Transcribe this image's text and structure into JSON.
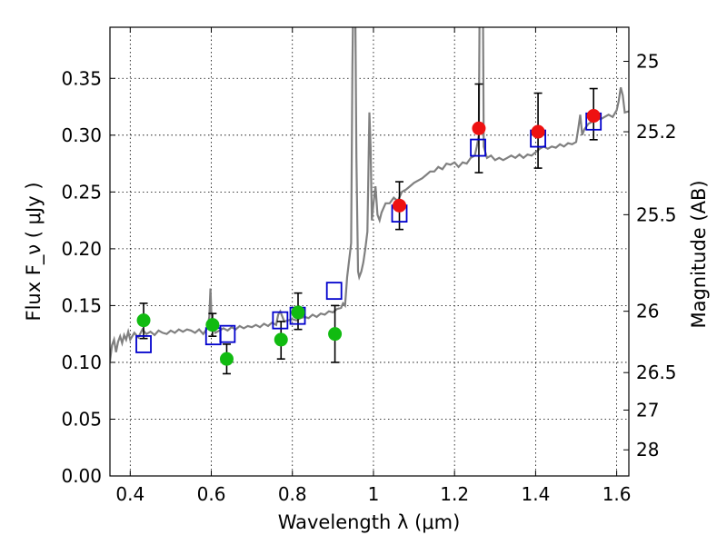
{
  "chart_data": {
    "type": "scatter",
    "title": "",
    "xlabel": "Wavelength  λ (μm)",
    "ylabel": "Flux  F_ν  ( μJy )",
    "y2label": "Magnitude (AB)",
    "xlim": [
      0.35,
      1.63
    ],
    "ylim": [
      0.0,
      0.395
    ],
    "grid": true,
    "x_ticks": [
      0.4,
      0.6,
      0.8,
      1.0,
      1.2,
      1.4,
      1.6
    ],
    "x_tick_labels": [
      "0.4",
      "0.6",
      "0.8",
      "1",
      "1.2",
      "1.4",
      "1.6"
    ],
    "y_ticks": [
      0.0,
      0.05,
      0.1,
      0.15,
      0.2,
      0.25,
      0.3,
      0.35
    ],
    "y_tick_labels": [
      "0.00",
      "0.05",
      "0.10",
      "0.15",
      "0.20",
      "0.25",
      "0.30",
      "0.35"
    ],
    "y2_ticks": [
      {
        "label": "25",
        "flux": 0.365
      },
      {
        "label": "25.2",
        "flux": 0.303
      },
      {
        "label": "25.5",
        "flux": 0.23
      },
      {
        "label": "26",
        "flux": 0.145
      },
      {
        "label": "26.5",
        "flux": 0.091
      },
      {
        "label": "27",
        "flux": 0.058
      },
      {
        "label": "28",
        "flux": 0.023
      }
    ],
    "colors": {
      "model_spectrum": "#808080",
      "green_points": "#11bb11",
      "red_points": "#ee1111",
      "model_squares": "#0000cc",
      "error_bars": "#000000"
    },
    "series": [
      {
        "kind": "line",
        "points": [
          [
            0.35,
            0.101
          ],
          [
            0.355,
            0.115
          ],
          [
            0.36,
            0.12
          ],
          [
            0.365,
            0.109
          ],
          [
            0.37,
            0.118
          ],
          [
            0.375,
            0.123
          ],
          [
            0.38,
            0.117
          ],
          [
            0.385,
            0.124
          ],
          [
            0.39,
            0.12
          ],
          [
            0.395,
            0.127
          ],
          [
            0.4,
            0.12
          ],
          [
            0.41,
            0.126
          ],
          [
            0.42,
            0.122
          ],
          [
            0.43,
            0.129
          ],
          [
            0.44,
            0.125
          ],
          [
            0.45,
            0.127
          ],
          [
            0.46,
            0.124
          ],
          [
            0.47,
            0.128
          ],
          [
            0.48,
            0.126
          ],
          [
            0.49,
            0.125
          ],
          [
            0.5,
            0.128
          ],
          [
            0.51,
            0.126
          ],
          [
            0.52,
            0.129
          ],
          [
            0.53,
            0.127
          ],
          [
            0.54,
            0.129
          ],
          [
            0.55,
            0.128
          ],
          [
            0.56,
            0.126
          ],
          [
            0.57,
            0.129
          ],
          [
            0.58,
            0.125
          ],
          [
            0.59,
            0.13
          ],
          [
            0.595,
            0.14
          ],
          [
            0.598,
            0.165
          ],
          [
            0.6,
            0.145
          ],
          [
            0.605,
            0.131
          ],
          [
            0.61,
            0.126
          ],
          [
            0.62,
            0.128
          ],
          [
            0.63,
            0.13
          ],
          [
            0.64,
            0.128
          ],
          [
            0.65,
            0.131
          ],
          [
            0.66,
            0.129
          ],
          [
            0.67,
            0.132
          ],
          [
            0.68,
            0.13
          ],
          [
            0.69,
            0.132
          ],
          [
            0.7,
            0.131
          ],
          [
            0.71,
            0.133
          ],
          [
            0.72,
            0.131
          ],
          [
            0.73,
            0.134
          ],
          [
            0.74,
            0.132
          ],
          [
            0.75,
            0.135
          ],
          [
            0.76,
            0.133
          ],
          [
            0.765,
            0.142
          ],
          [
            0.77,
            0.145
          ],
          [
            0.78,
            0.136
          ],
          [
            0.79,
            0.137
          ],
          [
            0.8,
            0.138
          ],
          [
            0.81,
            0.137
          ],
          [
            0.82,
            0.139
          ],
          [
            0.83,
            0.14
          ],
          [
            0.84,
            0.139
          ],
          [
            0.85,
            0.142
          ],
          [
            0.86,
            0.14
          ],
          [
            0.87,
            0.143
          ],
          [
            0.88,
            0.142
          ],
          [
            0.89,
            0.145
          ],
          [
            0.9,
            0.144
          ],
          [
            0.91,
            0.147
          ],
          [
            0.92,
            0.148
          ],
          [
            0.925,
            0.152
          ],
          [
            0.93,
            0.15
          ],
          [
            0.935,
            0.175
          ],
          [
            0.94,
            0.19
          ],
          [
            0.945,
            0.205
          ],
          [
            0.948,
            0.36
          ],
          [
            0.95,
            0.42
          ],
          [
            0.955,
            0.42
          ],
          [
            0.958,
            0.28
          ],
          [
            0.962,
            0.18
          ],
          [
            0.965,
            0.175
          ],
          [
            0.97,
            0.18
          ],
          [
            0.975,
            0.188
          ],
          [
            0.98,
            0.2
          ],
          [
            0.985,
            0.215
          ],
          [
            0.99,
            0.32
          ],
          [
            0.993,
            0.29
          ],
          [
            0.996,
            0.225
          ],
          [
            1.0,
            0.24
          ],
          [
            1.005,
            0.255
          ],
          [
            1.01,
            0.23
          ],
          [
            1.015,
            0.225
          ],
          [
            1.02,
            0.232
          ],
          [
            1.03,
            0.24
          ],
          [
            1.04,
            0.24
          ],
          [
            1.05,
            0.245
          ],
          [
            1.06,
            0.242
          ],
          [
            1.07,
            0.25
          ],
          [
            1.08,
            0.252
          ],
          [
            1.09,
            0.255
          ],
          [
            1.1,
            0.258
          ],
          [
            1.11,
            0.26
          ],
          [
            1.12,
            0.262
          ],
          [
            1.13,
            0.265
          ],
          [
            1.14,
            0.268
          ],
          [
            1.15,
            0.268
          ],
          [
            1.16,
            0.272
          ],
          [
            1.17,
            0.27
          ],
          [
            1.18,
            0.275
          ],
          [
            1.19,
            0.274
          ],
          [
            1.2,
            0.276
          ],
          [
            1.21,
            0.272
          ],
          [
            1.22,
            0.276
          ],
          [
            1.23,
            0.275
          ],
          [
            1.24,
            0.28
          ],
          [
            1.25,
            0.282
          ],
          [
            1.255,
            0.29
          ],
          [
            1.26,
            0.3
          ],
          [
            1.262,
            0.42
          ],
          [
            1.27,
            0.42
          ],
          [
            1.272,
            0.29
          ],
          [
            1.28,
            0.28
          ],
          [
            1.29,
            0.282
          ],
          [
            1.3,
            0.278
          ],
          [
            1.31,
            0.28
          ],
          [
            1.32,
            0.278
          ],
          [
            1.33,
            0.28
          ],
          [
            1.34,
            0.282
          ],
          [
            1.35,
            0.28
          ],
          [
            1.36,
            0.283
          ],
          [
            1.37,
            0.28
          ],
          [
            1.38,
            0.283
          ],
          [
            1.39,
            0.282
          ],
          [
            1.4,
            0.285
          ],
          [
            1.41,
            0.288
          ],
          [
            1.42,
            0.29
          ],
          [
            1.43,
            0.288
          ],
          [
            1.44,
            0.29
          ],
          [
            1.45,
            0.289
          ],
          [
            1.46,
            0.292
          ],
          [
            1.47,
            0.29
          ],
          [
            1.48,
            0.293
          ],
          [
            1.49,
            0.292
          ],
          [
            1.5,
            0.294
          ],
          [
            1.505,
            0.305
          ],
          [
            1.51,
            0.318
          ],
          [
            1.515,
            0.3
          ],
          [
            1.52,
            0.305
          ],
          [
            1.53,
            0.31
          ],
          [
            1.54,
            0.312
          ],
          [
            1.55,
            0.315
          ],
          [
            1.56,
            0.314
          ],
          [
            1.57,
            0.316
          ],
          [
            1.58,
            0.318
          ],
          [
            1.59,
            0.316
          ],
          [
            1.6,
            0.322
          ],
          [
            1.605,
            0.33
          ],
          [
            1.61,
            0.342
          ],
          [
            1.615,
            0.335
          ],
          [
            1.62,
            0.32
          ],
          [
            1.63,
            0.321
          ]
        ]
      },
      {
        "kind": "points",
        "points": [
          {
            "x": 0.433,
            "y": 0.137,
            "yerr": [
              0.121,
              0.152
            ]
          },
          {
            "x": 0.603,
            "y": 0.133,
            "yerr": [
              0.123,
              0.143
            ]
          },
          {
            "x": 0.638,
            "y": 0.103,
            "yerr": [
              0.09,
              0.116
            ]
          },
          {
            "x": 0.772,
            "y": 0.12,
            "yerr": [
              0.103,
              0.136
            ]
          },
          {
            "x": 0.814,
            "y": 0.144,
            "yerr": [
              0.129,
              0.161
            ]
          },
          {
            "x": 0.905,
            "y": 0.125,
            "yerr": [
              0.1,
              0.15
            ]
          }
        ]
      },
      {
        "kind": "points",
        "points": [
          {
            "x": 1.064,
            "y": 0.238,
            "yerr": [
              0.217,
              0.259
            ]
          },
          {
            "x": 1.26,
            "y": 0.306,
            "yerr": [
              0.267,
              0.345
            ]
          },
          {
            "x": 1.406,
            "y": 0.303,
            "yerr": [
              0.271,
              0.337
            ]
          },
          {
            "x": 1.543,
            "y": 0.317,
            "yerr": [
              0.296,
              0.341
            ]
          }
        ]
      },
      {
        "kind": "squares",
        "points": [
          {
            "x": 0.433,
            "y": 0.116
          },
          {
            "x": 0.605,
            "y": 0.123
          },
          {
            "x": 0.64,
            "y": 0.125
          },
          {
            "x": 0.77,
            "y": 0.137
          },
          {
            "x": 0.813,
            "y": 0.141
          },
          {
            "x": 0.903,
            "y": 0.163
          },
          {
            "x": 1.064,
            "y": 0.231
          },
          {
            "x": 1.258,
            "y": 0.289
          },
          {
            "x": 1.406,
            "y": 0.297
          },
          {
            "x": 1.543,
            "y": 0.312
          }
        ]
      }
    ]
  }
}
